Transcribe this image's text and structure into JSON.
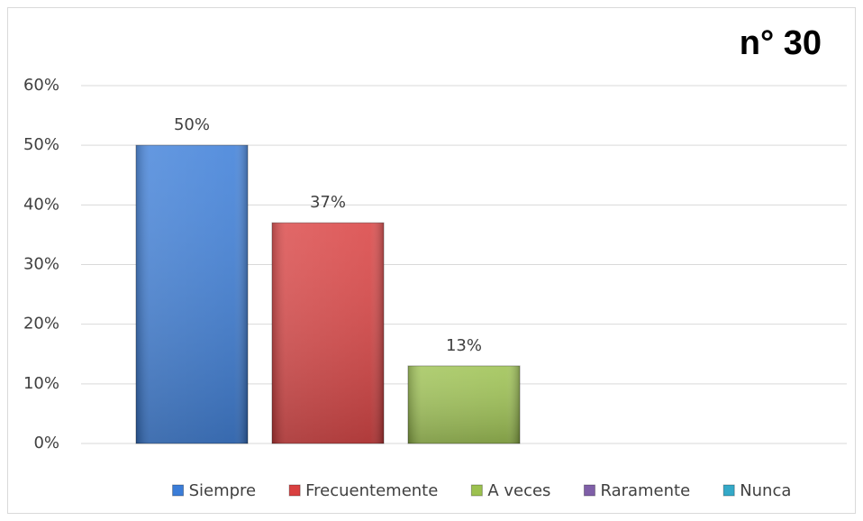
{
  "chart_data": {
    "type": "bar",
    "title": "n° 30",
    "series": [
      {
        "name": "Siempre",
        "color": "#3b7dd8",
        "values": [
          50
        ],
        "value_labels": [
          "50%"
        ]
      },
      {
        "name": "Frecuentemente",
        "color": "#d94040",
        "values": [
          37
        ],
        "value_labels": [
          "37%"
        ]
      },
      {
        "name": "A veces",
        "color": "#9cc14f",
        "values": [
          13
        ],
        "value_labels": [
          "13%"
        ]
      },
      {
        "name": "Raramente",
        "color": "#7f5fa8",
        "values": [
          null
        ]
      },
      {
        "name": "Nunca",
        "color": "#34a9c8",
        "values": [
          null
        ]
      }
    ],
    "ylim": [
      0,
      60
    ],
    "yticks": [
      {
        "value": 0,
        "label": "0%"
      },
      {
        "value": 10,
        "label": "10%"
      },
      {
        "value": 20,
        "label": "20%"
      },
      {
        "value": 30,
        "label": "30%"
      },
      {
        "value": 40,
        "label": "40%"
      },
      {
        "value": 50,
        "label": "50%"
      },
      {
        "value": 60,
        "label": "60%"
      }
    ],
    "grid": true,
    "legend": "bottom"
  }
}
